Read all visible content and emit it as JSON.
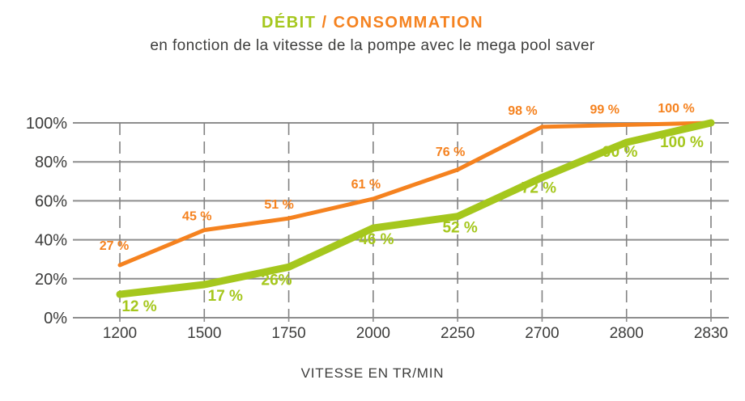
{
  "title": {
    "part1": "DÉBIT",
    "separator": " / ",
    "part2": "CONSOMMATION"
  },
  "subtitle": "en fonction de la vitesse de la pompe avec le mega pool saver",
  "colors": {
    "green": "#a5c71d",
    "orange": "#f5821f",
    "text_dark": "#3c3c3b",
    "grid": "#8e8e8e"
  },
  "chart_data": {
    "type": "line",
    "title": "DÉBIT / CONSOMMATION en fonction de la vitesse de la pompe avec le mega pool saver",
    "categories": [
      "1200",
      "1500",
      "1750",
      "2000",
      "2250",
      "2700",
      "2800",
      "2830"
    ],
    "series": [
      {
        "name": "CONSOMMATION",
        "color": "#f5821f",
        "values": [
          27,
          45,
          51,
          61,
          76,
          98,
          99,
          100
        ],
        "point_labels": [
          "27 %",
          "45 %",
          "51 %",
          "61 %",
          "76 %",
          "98 %",
          "99 %",
          "100 %"
        ]
      },
      {
        "name": "DÉBIT",
        "color": "#a5c71d",
        "values": [
          12,
          17,
          26,
          46,
          52,
          72,
          90,
          100
        ],
        "point_labels": [
          "12 %",
          "17 %",
          "26%",
          "46 %",
          "52 %",
          "72 %",
          "90 %",
          "100 %"
        ]
      }
    ],
    "xlabel": "VITESSE EN TR/MIN",
    "ylabel": "",
    "y_ticks": [
      "0%",
      "20%",
      "40%",
      "60%",
      "80%",
      "100%"
    ],
    "ylim": [
      0,
      100
    ],
    "grid": true,
    "legend": "none"
  }
}
